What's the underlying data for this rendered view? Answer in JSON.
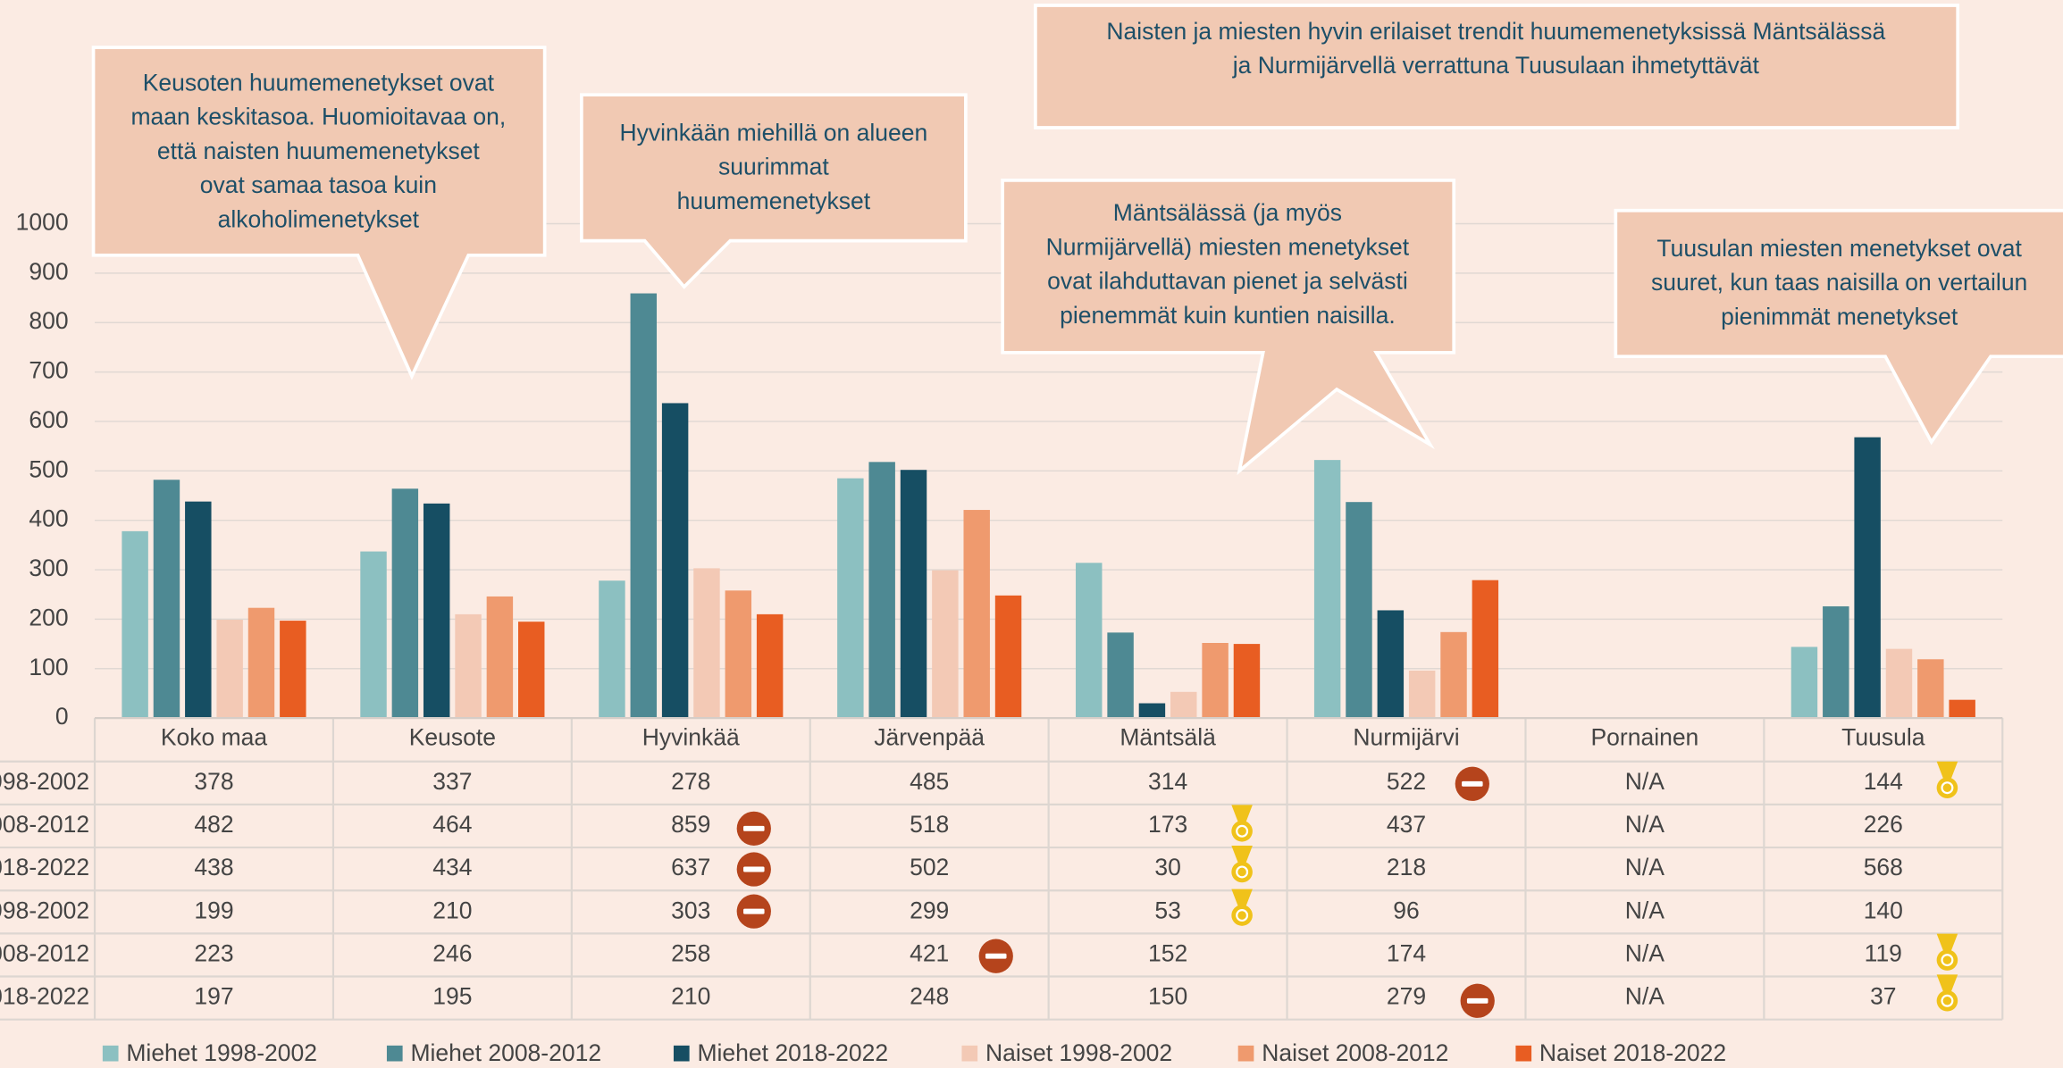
{
  "chart_data": {
    "type": "bar",
    "categories": [
      "Koko maa",
      "Keusote",
      "Hyvinkää",
      "Järvenpää",
      "Mäntsälä",
      "Nurmijärvi",
      "Pornainen",
      "Tuusula"
    ],
    "series": [
      {
        "name": "Miehet 1998-2002",
        "color": "#8cc0c1",
        "values": [
          378,
          337,
          278,
          485,
          314,
          522,
          null,
          144
        ],
        "value_labels": [
          null,
          null,
          null,
          null,
          null,
          null,
          "N/A",
          null
        ]
      },
      {
        "name": "Miehet 2008-2012",
        "color": "#4e8993",
        "values": [
          482,
          464,
          859,
          518,
          173,
          437,
          null,
          226
        ],
        "value_labels": [
          null,
          null,
          null,
          null,
          null,
          null,
          "N/A",
          null
        ]
      },
      {
        "name": "Miehet 2018-2022",
        "color": "#164e63",
        "values": [
          438,
          434,
          637,
          502,
          30,
          218,
          null,
          568
        ],
        "value_labels": [
          null,
          null,
          null,
          null,
          null,
          null,
          "N/A",
          null
        ]
      },
      {
        "name": "Naiset 1998-2002",
        "color": "#f3c9b5",
        "values": [
          199,
          210,
          303,
          299,
          53,
          96,
          null,
          140
        ],
        "value_labels": [
          null,
          null,
          null,
          null,
          null,
          null,
          "N/A",
          null
        ]
      },
      {
        "name": "Naiset 2008-2012",
        "color": "#ef9a6e",
        "values": [
          223,
          246,
          258,
          421,
          152,
          174,
          null,
          119
        ],
        "value_labels": [
          null,
          null,
          null,
          null,
          null,
          null,
          "N/A",
          null
        ]
      },
      {
        "name": "Naiset 2018-2022",
        "color": "#e85d22",
        "values": [
          197,
          195,
          210,
          248,
          150,
          279,
          null,
          37
        ],
        "value_labels": [
          null,
          null,
          null,
          null,
          null,
          null,
          "N/A",
          null
        ]
      }
    ],
    "ylim": [
      0,
      1000
    ],
    "yticks": [
      0,
      100,
      200,
      300,
      400,
      500,
      600,
      700,
      800,
      900,
      1000
    ],
    "grid": true,
    "annotations": [
      {
        "lines": [
          "Keusoten huumemenetykset ovat",
          "maan keskitasoa. Huomioitavaa on,",
          "että naisten huumemenetykset",
          "ovat samaa tasoa kuin",
          "alkoholimenetykset"
        ]
      },
      {
        "lines": [
          "Hyvinkään miehillä on alueen",
          "suurimmat",
          "huumemenetykset"
        ]
      },
      {
        "lines": [
          "Naisten ja miesten hyvin erilaiset trendit huumemenetyksissä Mäntsälässä",
          "ja Nurmijärvellä verrattuna Tuusulaan ihmetyttävät"
        ]
      },
      {
        "lines": [
          "Mäntsälässä (ja myös",
          "Nurmijärvellä) miesten menetykset",
          "ovat ilahduttavan pienet ja selvästi",
          "pienemmät kuin kuntien naisilla."
        ]
      },
      {
        "lines": [
          "Tuusulan miesten menetykset ovat",
          "suuret, kun taas naisilla on vertailun",
          "pienimmät menetykset"
        ]
      }
    ]
  }
}
